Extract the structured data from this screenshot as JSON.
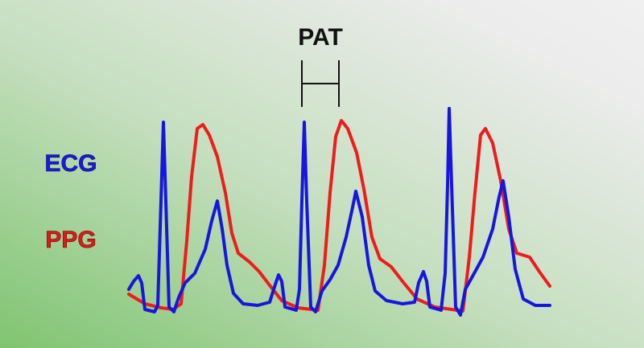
{
  "annotation": "PAT",
  "signals": [
    "ECG",
    "PPG"
  ]
}
